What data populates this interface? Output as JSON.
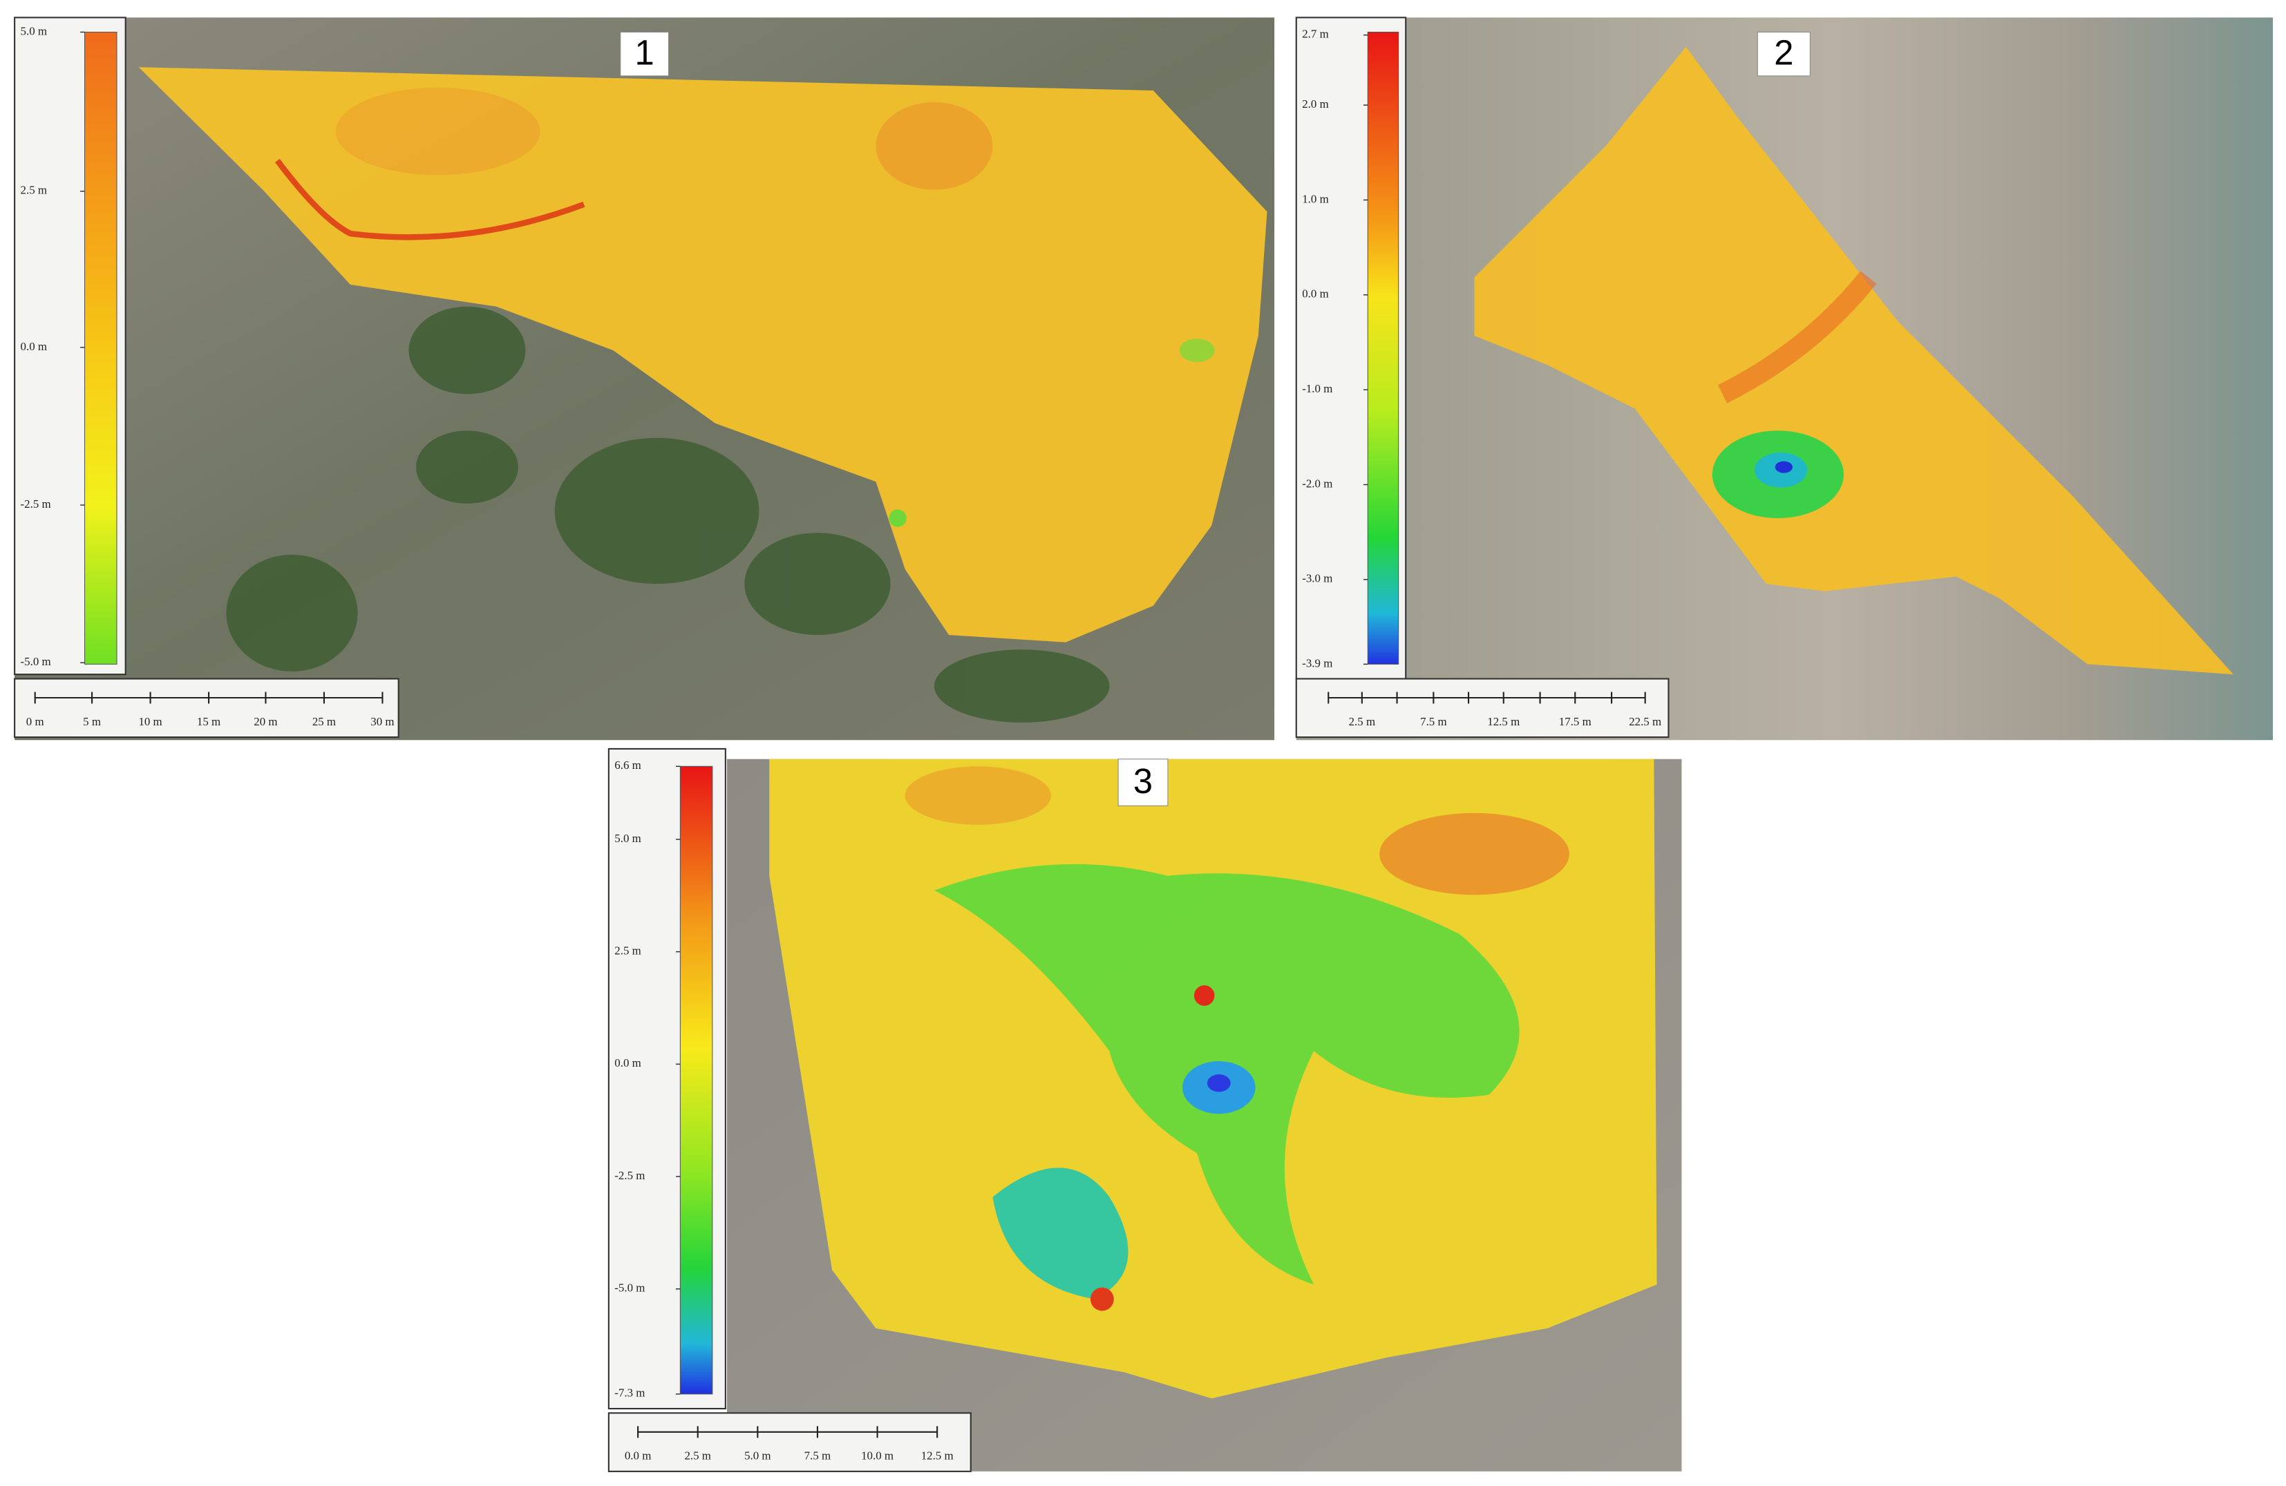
{
  "panels": [
    {
      "label": "1",
      "colorbar": [
        "5.0 m",
        "2.5 m",
        "0.0 m",
        "-2.5 m",
        "-5.0 m"
      ],
      "scalebar": [
        "0 m",
        "5 m",
        "10 m",
        "15 m",
        "20 m",
        "25 m",
        "30 m"
      ]
    },
    {
      "label": "2",
      "colorbar": [
        "2.7 m",
        "2.0 m",
        "1.0 m",
        "0.0 m",
        "-1.0 m",
        "-2.0 m",
        "-3.0 m",
        "-3.9 m"
      ],
      "scalebar": [
        "2.5 m",
        "7.5 m",
        "12.5 m",
        "17.5 m",
        "22.5 m"
      ]
    },
    {
      "label": "3",
      "colorbar": [
        "6.6 m",
        "5.0 m",
        "2.5 m",
        "0.0 m",
        "-2.5 m",
        "-5.0 m",
        "-7.3 m"
      ],
      "scalebar": [
        "0.0 m",
        "2.5 m",
        "5.0 m",
        "7.5 m",
        "10.0 m",
        "12.5 m"
      ]
    }
  ]
}
